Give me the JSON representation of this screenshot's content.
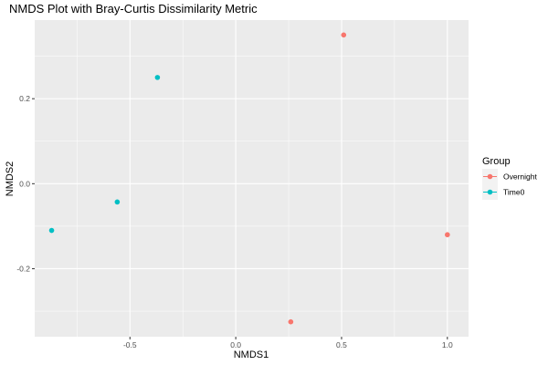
{
  "chart_data": {
    "type": "scatter",
    "title": "NMDS Plot with Bray-Curtis Dissimilarity Metric",
    "xlabel": "NMDS1",
    "ylabel": "NMDS2",
    "xlim": [
      -0.95,
      1.1
    ],
    "ylim": [
      -0.36,
      0.385
    ],
    "xticks": [
      -0.5,
      0.0,
      0.5,
      1.0
    ],
    "xtick_labels": [
      "-0.5",
      "0.0",
      "0.5",
      "1.0"
    ],
    "yticks": [
      -0.2,
      0.0,
      0.2
    ],
    "ytick_labels": [
      "-0.2",
      "0.0",
      "0.2"
    ],
    "grid": true,
    "legend": {
      "title": "Group",
      "position": "right"
    },
    "series": [
      {
        "name": "Overnight",
        "color": "#F8766D",
        "points": [
          {
            "x": 0.51,
            "y": 0.35
          },
          {
            "x": 1.0,
            "y": -0.12
          },
          {
            "x": 0.26,
            "y": -0.325
          }
        ]
      },
      {
        "name": "Time0",
        "color": "#00BFC4",
        "points": [
          {
            "x": -0.37,
            "y": 0.25
          },
          {
            "x": -0.56,
            "y": -0.043
          },
          {
            "x": -0.87,
            "y": -0.11
          }
        ]
      }
    ]
  }
}
